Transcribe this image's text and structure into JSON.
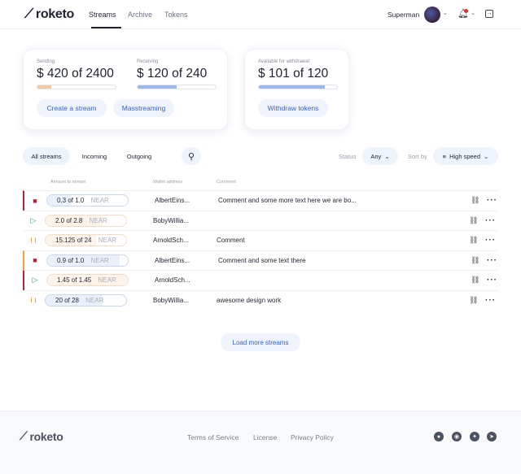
{
  "header": {
    "brand": "roketo",
    "nav": [
      "Streams",
      "Archive",
      "Tokens"
    ],
    "user": "Superman"
  },
  "summary": {
    "sending": {
      "label": "Sending",
      "value": "$ 420 of 2400",
      "progress": 0.175
    },
    "receiving": {
      "label": "Receiving",
      "value": "$ 120 of 240",
      "progress": 0.5
    },
    "withdraw": {
      "label": "Available for withdrawal",
      "value": "$ 101 of 120",
      "progress": 0.84
    },
    "create_label": "Create a stream",
    "mass_label": "Masstreaming",
    "withdraw_label": "Withdraw tokens"
  },
  "filters": {
    "tabs": [
      "All streams",
      "Incoming",
      "Outgoing"
    ],
    "status_label": "Status",
    "status_value": "Any",
    "sort_label": "Sort by",
    "sort_value": "High speed"
  },
  "table": {
    "headers": [
      "Amount to stream",
      "Wallet address",
      "Comment"
    ],
    "rows": [
      {
        "status": "stopped",
        "amount": "0.3 of 1.0",
        "unit": "NEAR",
        "progress": 0.3,
        "kind": "incoming",
        "wallet": "AlbertEins...",
        "comment": "Comment and some more text here we are bo...",
        "marker": "#b3263a"
      },
      {
        "status": "active",
        "amount": "2.0 of 2.8",
        "unit": "NEAR",
        "progress": 0.71,
        "kind": "outgoing",
        "wallet": "BobyWillia...",
        "comment": "",
        "marker": ""
      },
      {
        "status": "paused",
        "amount": "15.125 of 24",
        "unit": "NEAR",
        "progress": 0.63,
        "kind": "outgoing",
        "wallet": "ArnoldSch...",
        "comment": "Comment",
        "marker": ""
      },
      {
        "status": "stopped",
        "amount": "0.9 of 1.0",
        "unit": "NEAR",
        "progress": 0.9,
        "kind": "incoming",
        "wallet": "AlbertEins...",
        "comment": "Comment and some text there",
        "marker": "#f0a23a"
      },
      {
        "status": "active",
        "amount": "1.45 of 1.45",
        "unit": "NEAR",
        "progress": 1.0,
        "kind": "outgoing",
        "wallet": "ArnoldSch...",
        "comment": "",
        "marker": "#b3263a"
      },
      {
        "status": "paused",
        "amount": "20 of 28",
        "unit": "NEAR",
        "progress": 0.71,
        "kind": "incoming",
        "wallet": "BobyWillia...",
        "comment": "awesome design work",
        "marker": ""
      }
    ]
  },
  "load_more": "Load more streams",
  "footer": {
    "brand": "roketo",
    "links": [
      "Terms of Service",
      "License",
      "Privacy Policy"
    ],
    "social": [
      "github-icon",
      "discord-icon",
      "twitter-icon",
      "telegram-icon"
    ]
  },
  "colors": {
    "accent": "#3a63c4",
    "sending": "#f3c9a0",
    "receiving": "#9db8ec",
    "stopped": "#b3263a",
    "active": "#2fa84f",
    "paused": "#f0a23a"
  }
}
